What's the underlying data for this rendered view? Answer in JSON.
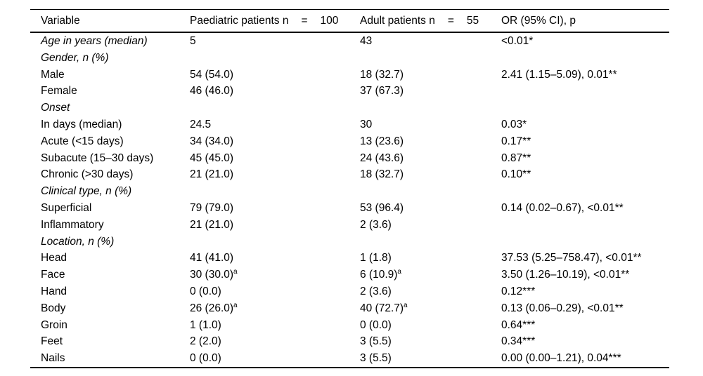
{
  "table": {
    "columns": [
      {
        "label": "Variable"
      },
      {
        "label": "Paediatric patients n",
        "eq": "=",
        "n": "100"
      },
      {
        "label": "Adult patients n",
        "eq": "=",
        "n": "55"
      },
      {
        "label": "OR (95% CI), p"
      }
    ],
    "rows": [
      {
        "italic": true,
        "variable": "Age in years (median)",
        "paediatric": "5",
        "adult": "43",
        "or": "<0.01*"
      },
      {
        "italic": true,
        "variable": "Gender, n (%)",
        "paediatric": "",
        "adult": "",
        "or": ""
      },
      {
        "italic": false,
        "variable": "Male",
        "paediatric": "54 (54.0)",
        "adult": "18 (32.7)",
        "or": "2.41 (1.15–5.09), 0.01**"
      },
      {
        "italic": false,
        "variable": "Female",
        "paediatric": "46 (46.0)",
        "adult": "37 (67.3)",
        "or": ""
      },
      {
        "italic": true,
        "variable": "Onset",
        "paediatric": "",
        "adult": "",
        "or": ""
      },
      {
        "italic": false,
        "variable": "In days (median)",
        "paediatric": "24.5",
        "adult": "30",
        "or": "0.03*"
      },
      {
        "italic": false,
        "variable": "Acute (<15 days)",
        "paediatric": "34 (34.0)",
        "adult": "13 (23.6)",
        "or": "0.17**"
      },
      {
        "italic": false,
        "variable": "Subacute (15–30 days)",
        "paediatric": "45 (45.0)",
        "adult": "24 (43.6)",
        "or": "0.87**"
      },
      {
        "italic": false,
        "variable": "Chronic (>30 days)",
        "paediatric": "21 (21.0)",
        "adult": "18 (32.7)",
        "or": "0.10**"
      },
      {
        "italic": true,
        "variable": "Clinical type, n (%)",
        "paediatric": "",
        "adult": "",
        "or": ""
      },
      {
        "italic": false,
        "variable": "Superficial",
        "paediatric": "79 (79.0)",
        "adult": "53 (96.4)",
        "or": "0.14 (0.02–0.67), <0.01**"
      },
      {
        "italic": false,
        "variable": "Inflammatory",
        "paediatric": "21 (21.0)",
        "adult": "2 (3.6)",
        "or": ""
      },
      {
        "italic": true,
        "variable": "Location, n (%)",
        "paediatric": "",
        "adult": "",
        "or": ""
      },
      {
        "italic": false,
        "variable": "Head",
        "paediatric": "41 (41.0)",
        "adult": "1 (1.8)",
        "or": "37.53 (5.25–758.47), <0.01**"
      },
      {
        "italic": false,
        "variable": "Face",
        "paediatric": "30 (30.0)",
        "paediatric_sup": "a",
        "adult": "6 (10.9)",
        "adult_sup": "a",
        "or": "3.50 (1.26–10.19), <0.01**"
      },
      {
        "italic": false,
        "variable": "Hand",
        "paediatric": "0 (0.0)",
        "adult": "2 (3.6)",
        "or": "0.12***"
      },
      {
        "italic": false,
        "variable": "Body",
        "paediatric": "26 (26.0)",
        "paediatric_sup": "a",
        "adult": "40 (72.7)",
        "adult_sup": "a",
        "or": "0.13 (0.06–0.29), <0.01**"
      },
      {
        "italic": false,
        "variable": "Groin",
        "paediatric": "1 (1.0)",
        "adult": "0 (0.0)",
        "or": "0.64***"
      },
      {
        "italic": false,
        "variable": "Feet",
        "paediatric": "2 (2.0)",
        "adult": "3 (5.5)",
        "or": "0.34***"
      },
      {
        "italic": false,
        "variable": "Nails",
        "paediatric": "0 (0.0)",
        "adult": "3 (5.5)",
        "or": "0.00 (0.00–1.21), 0.04***"
      }
    ]
  }
}
